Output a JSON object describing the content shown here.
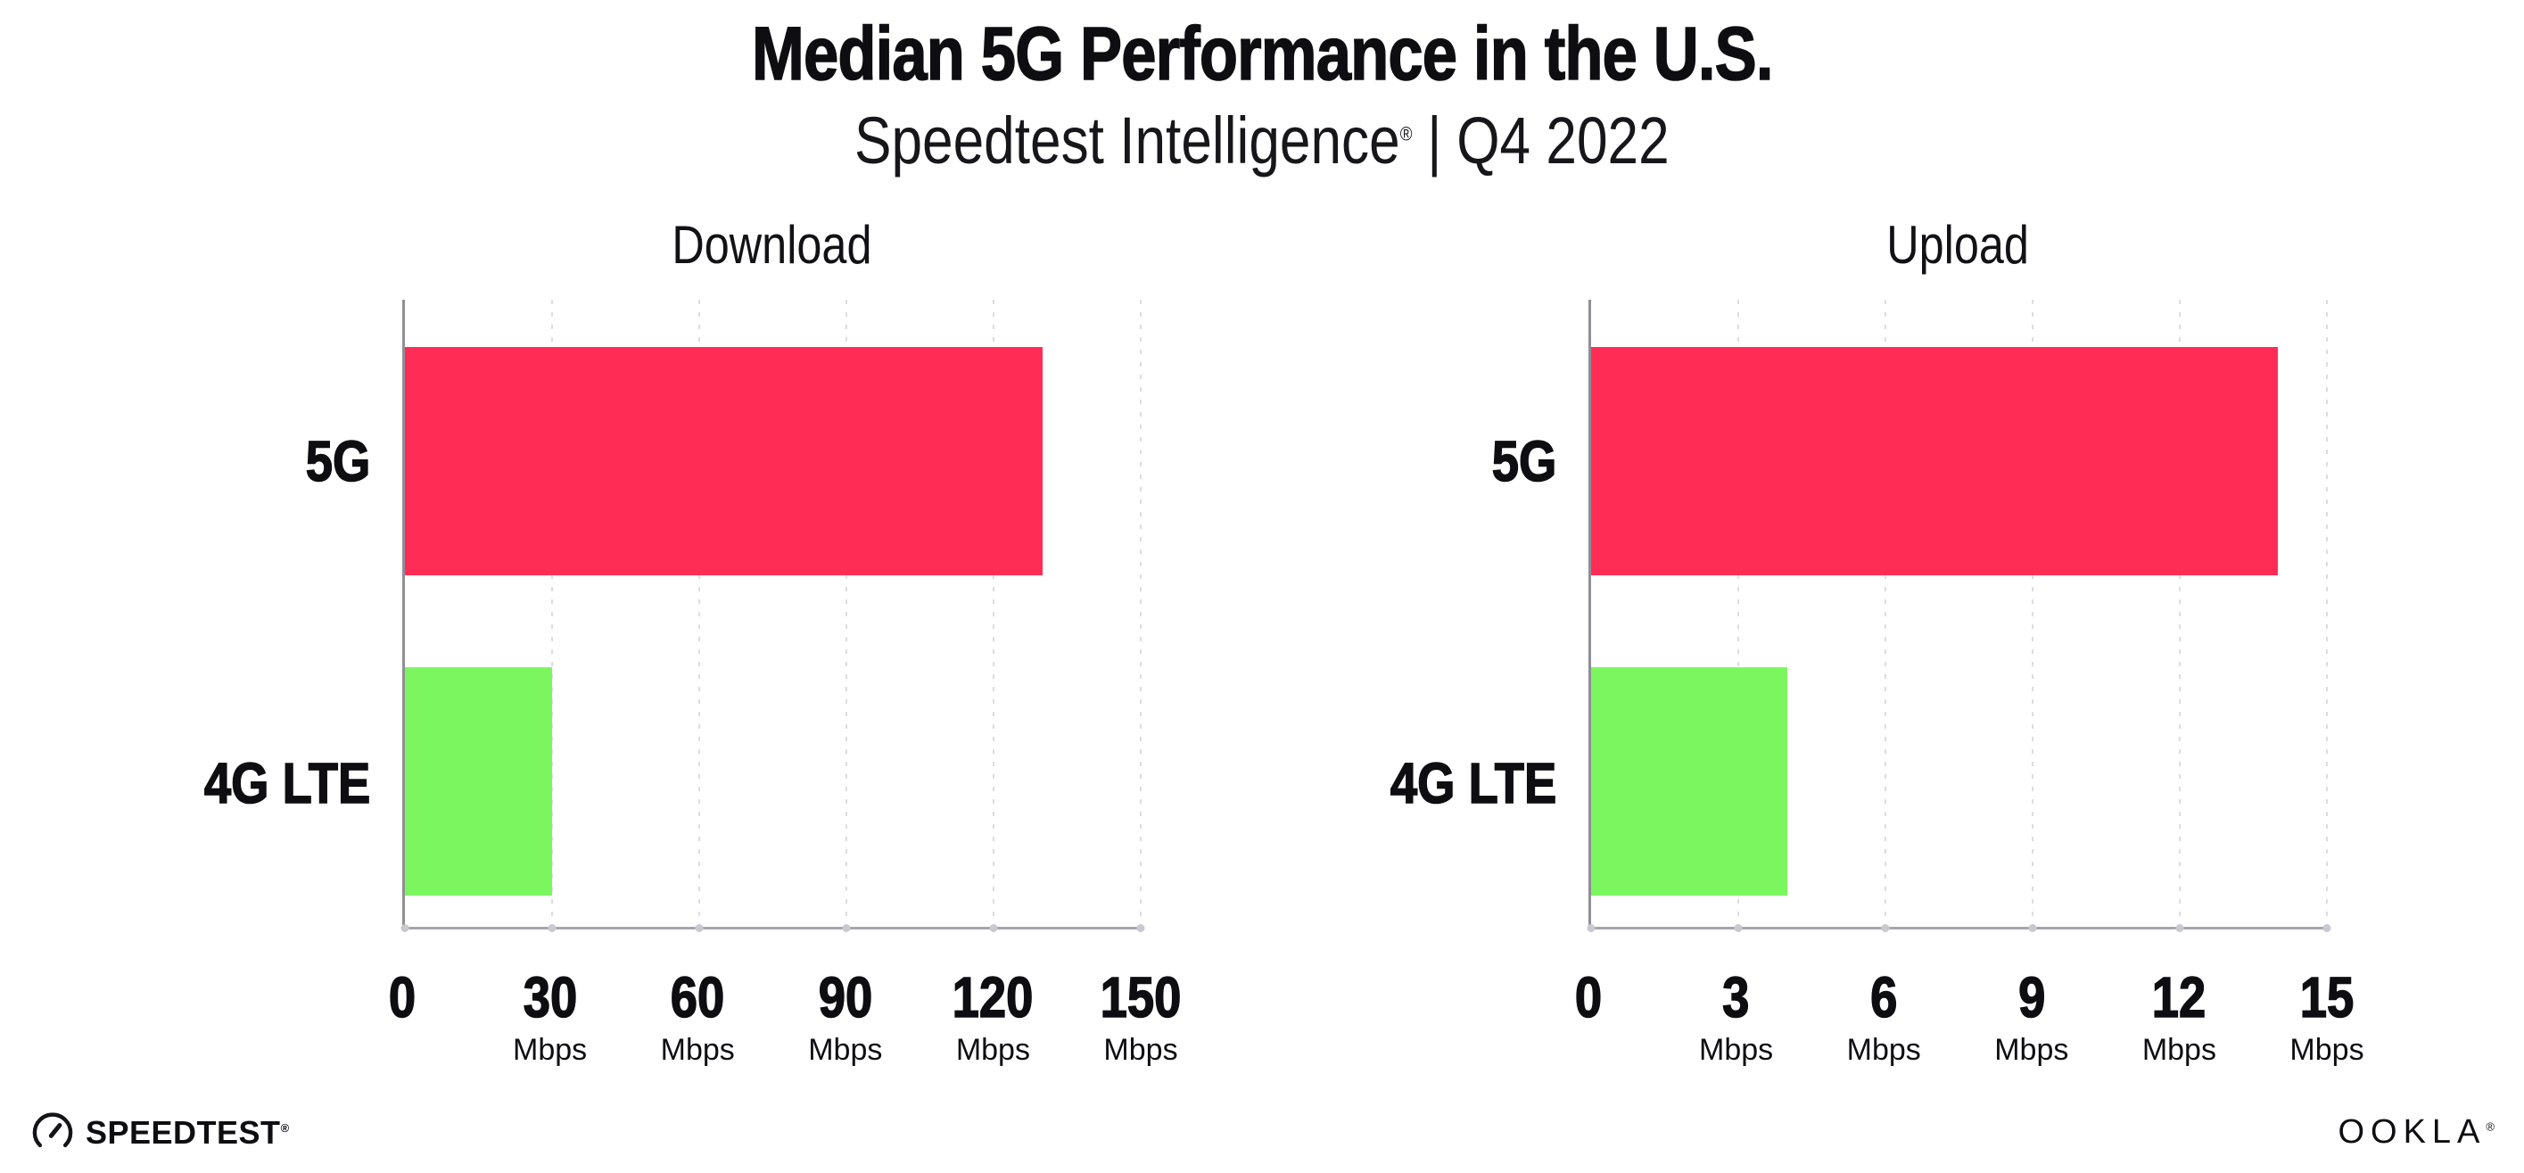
{
  "page": {
    "title": "Median 5G Performance in the U.S.",
    "subtitle_brand": "Speedtest Intelligence",
    "subtitle_reg": "®",
    "subtitle_sep": "|",
    "subtitle_period": "Q4 2022"
  },
  "colors": {
    "bar_5g": "#FF2D56",
    "bar_4g_lte": "#7CF65F",
    "gridline": "#DCDCE4",
    "y_axis": "#8F8F96",
    "x_axis": "#A6A6AD",
    "tick_dot": "#C9C9D3",
    "text": "#0E0E12"
  },
  "chart_data": [
    {
      "type": "bar",
      "orientation": "horizontal",
      "title": "Download",
      "categories": [
        "5G",
        "4G LTE"
      ],
      "values": [
        130,
        30
      ],
      "unit": "Mbps",
      "xlim": [
        0,
        150
      ],
      "ticks": [
        0,
        30,
        60,
        90,
        120,
        150
      ],
      "bar_colors": [
        "#FF2D56",
        "#7CF65F"
      ],
      "grid": "dotted-vertical",
      "legend": "none"
    },
    {
      "type": "bar",
      "orientation": "horizontal",
      "title": "Upload",
      "categories": [
        "5G",
        "4G LTE"
      ],
      "values": [
        14,
        4
      ],
      "unit": "Mbps",
      "xlim": [
        0,
        15
      ],
      "ticks": [
        0,
        3,
        6,
        9,
        12,
        15
      ],
      "bar_colors": [
        "#FF2D56",
        "#7CF65F"
      ],
      "grid": "dotted-vertical",
      "legend": "none"
    }
  ],
  "footer": {
    "speedtest_label": "SPEEDTEST",
    "speedtest_reg": "®",
    "ookla_label": "OOKLA",
    "ookla_reg": "®"
  }
}
